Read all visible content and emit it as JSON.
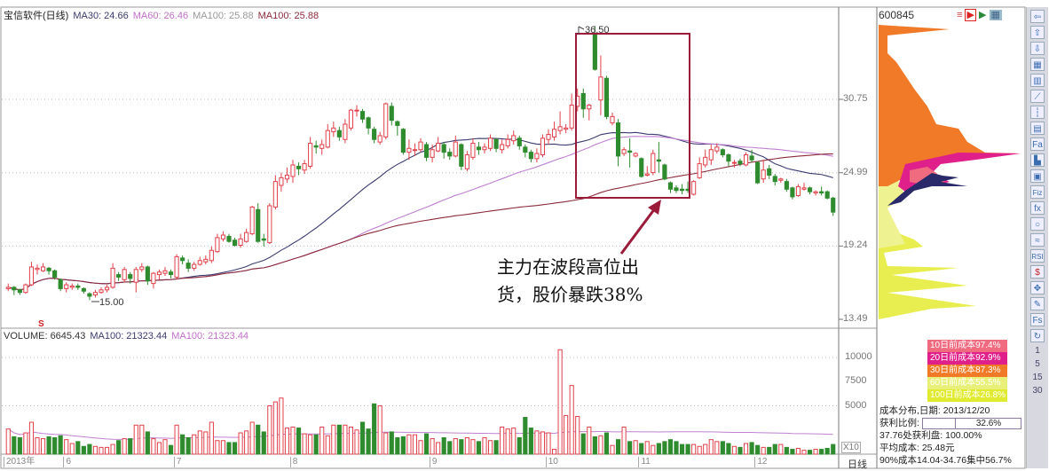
{
  "header": {
    "title": "宝信软件(日线)",
    "ma30": "MA30: 24.66",
    "ma60": "MA60: 26.46",
    "ma100a": "MA100: 25.88",
    "ma100b": "MA100: 25.88"
  },
  "volume_header": {
    "volume": "VOLUME: 6645.43",
    "ma100a": "MA100: 21323.44",
    "ma100b": "MA100: 21323.44"
  },
  "colors": {
    "up": "#e0404a",
    "down": "#2e8b2e",
    "ma30": "#3b3b6e",
    "ma60": "#c080d0",
    "ma100": "#8b2a3a",
    "annotation": "#9b1b3b"
  },
  "annotation": {
    "line1": "主力在波段高位出",
    "line2": "货，股价暴跌38%"
  },
  "marks": {
    "high": "36.50",
    "low": "15.00",
    "s_marker": "S",
    "x10": "X10",
    "period": "日线"
  },
  "chart_data": {
    "type": "candlestick",
    "title": "宝信软件(日线)",
    "price_ticks": [
      "30.75",
      "24.99",
      "19.24",
      "13.49"
    ],
    "price_range": [
      13.49,
      38.2
    ],
    "volume_ticks": [
      "10000",
      "7500",
      "5000"
    ],
    "volume_range": [
      0,
      12000
    ],
    "months": [
      "2013年",
      "6",
      "7",
      "8",
      "9",
      "10",
      "11",
      "12"
    ],
    "month_starts": [
      0,
      10,
      29,
      49,
      73,
      93,
      109,
      129
    ],
    "grid": true,
    "candles_ohlc_order": "open,close,high,low",
    "candles": [
      [
        15.9,
        16.0,
        16.3,
        15.7
      ],
      [
        16.0,
        15.8,
        16.1,
        15.4
      ],
      [
        15.8,
        15.6,
        15.9,
        15.4
      ],
      [
        15.6,
        16.2,
        16.3,
        15.5
      ],
      [
        16.2,
        17.6,
        18.0,
        16.1
      ],
      [
        17.4,
        17.5,
        17.8,
        17.0
      ],
      [
        17.3,
        17.6,
        17.9,
        17.2
      ],
      [
        17.5,
        17.3,
        17.6,
        17.0
      ],
      [
        17.3,
        16.8,
        17.4,
        16.6
      ],
      [
        16.6,
        15.9,
        16.7,
        15.7
      ],
      [
        15.9,
        16.2,
        16.4,
        15.6
      ],
      [
        16.0,
        16.1,
        16.3,
        15.8
      ],
      [
        16.1,
        16.0,
        16.3,
        15.8
      ],
      [
        15.9,
        15.7,
        16.0,
        15.5
      ],
      [
        15.5,
        15.3,
        15.6,
        15.0
      ],
      [
        15.4,
        15.6,
        15.8,
        15.2
      ],
      [
        15.6,
        15.8,
        16.0,
        15.5
      ],
      [
        15.8,
        16.0,
        16.2,
        15.6
      ],
      [
        16.0,
        17.5,
        17.9,
        15.9
      ],
      [
        17.0,
        16.8,
        17.2,
        16.5
      ],
      [
        16.6,
        17.4,
        17.6,
        16.4
      ],
      [
        17.0,
        16.7,
        17.2,
        16.3
      ],
      [
        16.4,
        17.4,
        17.6,
        15.6
      ],
      [
        17.4,
        17.6,
        17.9,
        17.2
      ],
      [
        17.6,
        16.5,
        17.7,
        16.2
      ],
      [
        16.3,
        17.1,
        17.2,
        15.9
      ],
      [
        17.0,
        17.2,
        17.4,
        16.6
      ],
      [
        17.1,
        17.3,
        17.6,
        16.9
      ],
      [
        17.2,
        17.0,
        17.4,
        16.7
      ],
      [
        16.8,
        18.4,
        18.6,
        16.6
      ],
      [
        18.3,
        18.1,
        18.5,
        17.8
      ],
      [
        17.9,
        17.5,
        18.2,
        17.2
      ],
      [
        17.5,
        17.8,
        18.0,
        17.3
      ],
      [
        17.8,
        18.1,
        18.4,
        17.7
      ],
      [
        18.0,
        18.2,
        18.5,
        17.8
      ],
      [
        18.1,
        18.9,
        19.2,
        17.9
      ],
      [
        18.8,
        19.9,
        20.2,
        18.7
      ],
      [
        19.8,
        20.1,
        20.4,
        19.6
      ],
      [
        20.0,
        19.6,
        20.2,
        19.5
      ],
      [
        19.7,
        19.3,
        19.9,
        19.2
      ],
      [
        19.3,
        19.8,
        20.2,
        19.1
      ],
      [
        19.6,
        20.3,
        20.6,
        19.5
      ],
      [
        20.2,
        22.3,
        22.4,
        20.1
      ],
      [
        22.1,
        19.6,
        22.6,
        19.5
      ],
      [
        19.8,
        19.7,
        20.2,
        19.2
      ],
      [
        19.5,
        22.4,
        22.6,
        19.4
      ],
      [
        22.3,
        24.3,
        24.8,
        22.1
      ],
      [
        24.0,
        24.6,
        25.0,
        23.5
      ],
      [
        24.5,
        24.8,
        25.4,
        24.2
      ],
      [
        24.7,
        25.6,
        26.0,
        24.2
      ],
      [
        25.5,
        25.3,
        25.8,
        24.8
      ],
      [
        25.2,
        25.7,
        26.0,
        24.9
      ],
      [
        25.5,
        27.3,
        27.8,
        25.3
      ],
      [
        27.1,
        27.0,
        27.5,
        26.5
      ],
      [
        26.9,
        27.2,
        27.6,
        26.4
      ],
      [
        27.0,
        28.3,
        28.8,
        26.9
      ],
      [
        28.2,
        28.5,
        29.0,
        27.8
      ],
      [
        28.3,
        27.8,
        28.6,
        27.5
      ],
      [
        27.6,
        28.8,
        29.2,
        27.3
      ],
      [
        28.5,
        29.9,
        30.0,
        28.3
      ],
      [
        29.9,
        29.9,
        30.3,
        29.4
      ],
      [
        29.8,
        29.2,
        30.0,
        28.9
      ],
      [
        29.3,
        28.5,
        29.4,
        28.0
      ],
      [
        28.4,
        27.6,
        28.6,
        27.3
      ],
      [
        27.4,
        27.9,
        28.2,
        27.2
      ],
      [
        27.8,
        30.4,
        30.5,
        27.6
      ],
      [
        30.2,
        29.1,
        30.5,
        28.7
      ],
      [
        29.0,
        28.7,
        29.1,
        27.9
      ],
      [
        28.4,
        26.6,
        28.5,
        26.4
      ],
      [
        26.6,
        26.9,
        27.6,
        26.0
      ],
      [
        26.8,
        26.8,
        27.3,
        26.3
      ],
      [
        26.8,
        27.4,
        27.7,
        26.6
      ],
      [
        27.2,
        26.2,
        27.4,
        25.9
      ],
      [
        26.2,
        26.8,
        27.2,
        25.8
      ],
      [
        26.7,
        27.3,
        27.8,
        26.6
      ],
      [
        27.2,
        26.6,
        27.4,
        26.1
      ],
      [
        26.6,
        26.3,
        26.9,
        26.0
      ],
      [
        26.3,
        27.4,
        27.9,
        26.2
      ],
      [
        27.2,
        25.5,
        27.3,
        25.2
      ],
      [
        25.3,
        26.4,
        26.7,
        25.1
      ],
      [
        26.2,
        27.3,
        27.7,
        26.0
      ],
      [
        27.0,
        26.8,
        27.4,
        26.4
      ],
      [
        26.8,
        27.0,
        27.3,
        26.5
      ],
      [
        26.9,
        27.7,
        28.0,
        26.7
      ],
      [
        27.6,
        26.9,
        27.7,
        26.6
      ],
      [
        26.8,
        27.2,
        27.6,
        26.5
      ],
      [
        27.1,
        27.6,
        28.0,
        26.9
      ],
      [
        27.5,
        27.9,
        28.3,
        27.2
      ],
      [
        27.7,
        27.1,
        27.9,
        26.8
      ],
      [
        27.0,
        26.6,
        27.2,
        26.2
      ],
      [
        26.6,
        26.1,
        26.8,
        25.8
      ],
      [
        26.1,
        26.5,
        26.9,
        25.8
      ],
      [
        26.4,
        27.7,
        28.0,
        26.2
      ],
      [
        27.6,
        28.0,
        28.4,
        27.2
      ],
      [
        27.8,
        28.4,
        29.0,
        27.5
      ],
      [
        28.3,
        28.6,
        29.8,
        28.0
      ],
      [
        28.4,
        28.5,
        28.8,
        28.1
      ],
      [
        28.5,
        30.3,
        31.2,
        28.3
      ],
      [
        30.2,
        31.0,
        31.6,
        29.8
      ],
      [
        31.2,
        30.0,
        31.6,
        29.3
      ],
      [
        30.0,
        30.3,
        30.4,
        29.1
      ],
      [
        35.9,
        33.1,
        36.5,
        33.0
      ],
      [
        30.7,
        32.5,
        34.2,
        29.5
      ],
      [
        32.4,
        29.4,
        32.6,
        29.2
      ],
      [
        28.9,
        29.4,
        29.7,
        28.7
      ],
      [
        28.9,
        26.3,
        29.2,
        25.5
      ],
      [
        26.5,
        26.8,
        27.0,
        26.3
      ],
      [
        26.7,
        26.6,
        27.7,
        25.4
      ],
      [
        26.3,
        26.5,
        26.6,
        26.2
      ],
      [
        26.1,
        24.7,
        26.2,
        24.6
      ],
      [
        24.8,
        24.9,
        25.5,
        24.7
      ],
      [
        25.0,
        26.5,
        26.8,
        24.8
      ],
      [
        26.0,
        25.9,
        27.4,
        25.0
      ],
      [
        25.6,
        24.5,
        25.7,
        24.4
      ],
      [
        24.2,
        23.7,
        24.3,
        23.4
      ],
      [
        23.8,
        23.6,
        24.0,
        23.4
      ],
      [
        23.7,
        23.6,
        24.1,
        23.3
      ],
      [
        23.7,
        23.6,
        24.3,
        23.4
      ],
      [
        23.3,
        24.3,
        24.4,
        23.2
      ],
      [
        24.6,
        25.7,
        26.2,
        24.5
      ],
      [
        25.6,
        26.2,
        26.8,
        25.4
      ],
      [
        26.0,
        26.8,
        27.2,
        25.6
      ],
      [
        26.7,
        27.0,
        27.3,
        26.5
      ],
      [
        26.8,
        26.4,
        26.9,
        26.2
      ],
      [
        26.4,
        25.9,
        26.5,
        25.5
      ],
      [
        25.8,
        25.8,
        26.0,
        25.4
      ],
      [
        25.9,
        25.7,
        26.1,
        25.5
      ],
      [
        25.6,
        26.4,
        26.6,
        25.5
      ],
      [
        26.3,
        26.0,
        26.8,
        25.8
      ],
      [
        25.8,
        24.2,
        25.9,
        24.1
      ],
      [
        24.5,
        25.2,
        26.0,
        24.2
      ],
      [
        25.3,
        24.8,
        25.6,
        24.5
      ],
      [
        24.7,
        24.3,
        24.9,
        24.0
      ],
      [
        24.4,
        24.5,
        24.6,
        24.2
      ],
      [
        24.3,
        23.7,
        24.5,
        23.5
      ],
      [
        23.8,
        23.1,
        23.9,
        22.9
      ],
      [
        23.2,
        23.9,
        24.1,
        23.1
      ],
      [
        23.7,
        23.8,
        24.2,
        23.6
      ],
      [
        23.8,
        23.5,
        23.9,
        23.3
      ],
      [
        23.4,
        23.5,
        23.6,
        23.2
      ],
      [
        23.5,
        23.4,
        23.9,
        23.2
      ],
      [
        23.5,
        23.0,
        23.6,
        22.9
      ],
      [
        23.0,
        21.9,
        23.1,
        21.6
      ]
    ],
    "volumes": [
      2600,
      1800,
      1700,
      2200,
      3300,
      1700,
      1600,
      1800,
      1700,
      1900,
      1500,
      1100,
      1300,
      800,
      1000,
      800,
      700,
      700,
      1000,
      1400,
      1600,
      1600,
      3000,
      3000,
      2300,
      1600,
      1200,
      1500,
      900,
      3000,
      2000,
      1700,
      2000,
      2400,
      2300,
      3300,
      1400,
      1400,
      1200,
      1200,
      2200,
      2400,
      3300,
      3000,
      2300,
      5000,
      5400,
      5800,
      2700,
      2800,
      2700,
      2100,
      2000,
      2000,
      2800,
      1900,
      3000,
      3000,
      3000,
      2800,
      2500,
      3300,
      2600,
      5200,
      5000,
      2200,
      2300,
      1700,
      1800,
      2000,
      2000,
      1400,
      2100,
      1600,
      1200,
      1700,
      1300,
      1600,
      1500,
      1700,
      1500,
      1300,
      1700,
      1400,
      1400,
      2800,
      2600,
      2700,
      1700,
      3800,
      2700,
      2400,
      2300,
      2200,
      500,
      10800,
      4000,
      7100,
      3900,
      2100,
      2800,
      1800,
      1900,
      2200,
      900,
      1500,
      2800,
      1300,
      1400,
      1100,
      1300,
      900,
      1100,
      1300,
      1500,
      1300,
      1000,
      1000,
      1000,
      800,
      1000,
      1500,
      1300,
      1300,
      1100,
      800,
      700,
      1100,
      1200,
      900,
      700,
      700,
      1000,
      1000,
      700,
      500,
      600,
      400,
      400,
      500,
      500,
      600,
      1000
    ]
  },
  "chip_panel": {
    "code": "600845",
    "legend": [
      {
        "label": "10日前成本97.4%",
        "color": "#f06a80"
      },
      {
        "label": "20日前成本92.9%",
        "color": "#e0208a"
      },
      {
        "label": "30日前成本87.3%",
        "color": "#f07a28"
      },
      {
        "label": "60日前成本55.5%",
        "color": "#e8f07a"
      },
      {
        "label": "100日前成本26.8%",
        "color": "#e0ea30"
      }
    ],
    "date_line": "成本分布,日期: 2013/12/20",
    "profit_label": "获利比例:",
    "profit_value": "32.6%",
    "profit_fraction": 0.326,
    "profit_at": "37.76处获利盘: 100.00%",
    "avg_cost": "平均成本: 25.48元",
    "concentration": "90%成本14.04-34.76集中56.7%"
  },
  "toolbar": {
    "items": [
      "arrow-left",
      "arrow-up",
      "arrow-down",
      "grid",
      "bars",
      "line",
      "candles",
      "table",
      "Fa",
      "tree",
      "calendar",
      "Fiz",
      "fx",
      "circle",
      "wave",
      "RSI",
      "$",
      "move",
      "pencil",
      "Fs",
      "refresh"
    ],
    "numbers": [
      "1",
      "5",
      "15",
      "30"
    ]
  }
}
